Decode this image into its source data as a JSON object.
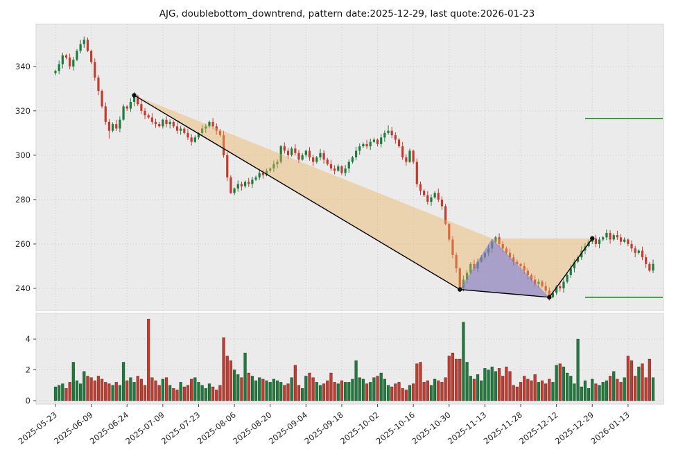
{
  "chart_data": {
    "type": "candlestick+volume",
    "title": "AJG, doublebottom_downtrend, pattern date:2025-12-29, last quote:2026-01-23",
    "symbol": "AJG",
    "pattern": "doublebottom_downtrend",
    "pattern_date": "2025-12-29",
    "last_quote_date": "2026-01-23",
    "price_axis": {
      "ticks": [
        240,
        260,
        280,
        300,
        320,
        340
      ],
      "ylim": [
        230,
        359
      ]
    },
    "volume_axis": {
      "ticks": [
        0,
        2,
        4
      ],
      "ylim": [
        0,
        5.67
      ]
    },
    "x_ticks": [
      {
        "index": 0,
        "label": "2025-05-23"
      },
      {
        "index": 10,
        "label": "2025-06-09"
      },
      {
        "index": 20,
        "label": "2025-06-24"
      },
      {
        "index": 30,
        "label": "2025-07-09"
      },
      {
        "index": 40,
        "label": "2025-07-23"
      },
      {
        "index": 50,
        "label": "2025-08-06"
      },
      {
        "index": 60,
        "label": "2025-08-20"
      },
      {
        "index": 70,
        "label": "2025-09-04"
      },
      {
        "index": 80,
        "label": "2025-09-18"
      },
      {
        "index": 90,
        "label": "2025-10-02"
      },
      {
        "index": 100,
        "label": "2025-10-16"
      },
      {
        "index": 110,
        "label": "2025-10-30"
      },
      {
        "index": 120,
        "label": "2025-11-13"
      },
      {
        "index": 130,
        "label": "2025-11-28"
      },
      {
        "index": 140,
        "label": "2025-12-12"
      },
      {
        "index": 150,
        "label": "2025-12-29"
      },
      {
        "index": 160,
        "label": "2026-01-13"
      }
    ],
    "first_open": 337,
    "closes": [
      338,
      341,
      345,
      344,
      340,
      343,
      347,
      350,
      352,
      347,
      342,
      335,
      329,
      322,
      315,
      311,
      314,
      312,
      316,
      322,
      321,
      324,
      326.5,
      323,
      320,
      318,
      317,
      315,
      314,
      313,
      316,
      314,
      315,
      313,
      311,
      312,
      310,
      308,
      306,
      308,
      310,
      312,
      313,
      315,
      313,
      311,
      309,
      300,
      290,
      283,
      285,
      287,
      286,
      288,
      287,
      289,
      290,
      292,
      291,
      293,
      294,
      296,
      297,
      304,
      302,
      300,
      303,
      301,
      298,
      300,
      302,
      299,
      297,
      299,
      301,
      298,
      296,
      294,
      293,
      295,
      292,
      294,
      297,
      299,
      302,
      304,
      305,
      304,
      306,
      307,
      305,
      308,
      310,
      311,
      309,
      307,
      304,
      299,
      297,
      302,
      297,
      287,
      284,
      282,
      279,
      281,
      283,
      280,
      277,
      269,
      262,
      255,
      249,
      240,
      244,
      247,
      251,
      249,
      252,
      254,
      256,
      258,
      261,
      263,
      260,
      258,
      256,
      254,
      252,
      251,
      250,
      248,
      246,
      244,
      242,
      243,
      241,
      239,
      236,
      238,
      241,
      240,
      243,
      246,
      249,
      252,
      254,
      257,
      259,
      261,
      262.5,
      260,
      262,
      263,
      265,
      262,
      264,
      263,
      261,
      262,
      260,
      258,
      256,
      257,
      254,
      251,
      248,
      251
    ],
    "volumes": [
      0.9,
      1.0,
      1.1,
      0.8,
      1.2,
      2.5,
      1.3,
      1.1,
      1.9,
      1.6,
      1.5,
      1.3,
      1.6,
      1.4,
      1.2,
      1.1,
      1.0,
      1.2,
      1.0,
      2.5,
      1.3,
      1.5,
      1.2,
      1.6,
      1.4,
      1.0,
      5.3,
      1.5,
      1.3,
      1.0,
      1.4,
      1.5,
      1.0,
      0.8,
      0.7,
      1.2,
      0.9,
      1.0,
      1.4,
      1.5,
      1.2,
      1.0,
      0.8,
      1.1,
      0.9,
      0.7,
      1.0,
      4.1,
      2.9,
      2.6,
      2.0,
      1.7,
      1.5,
      3.1,
      1.8,
      1.6,
      1.3,
      1.5,
      1.4,
      1.3,
      1.2,
      1.4,
      1.3,
      1.2,
      1.0,
      1.1,
      1.5,
      2.3,
      1.0,
      0.8,
      1.6,
      1.8,
      1.5,
      1.2,
      1.0,
      1.1,
      1.3,
      1.8,
      1.2,
      1.1,
      1.3,
      1.2,
      1.2,
      1.4,
      2.6,
      1.5,
      1.4,
      1.1,
      1.2,
      1.5,
      1.6,
      1.8,
      1.4,
      1.0,
      0.9,
      1.1,
      1.2,
      0.8,
      0.7,
      1.0,
      1.1,
      2.4,
      2.5,
      1.2,
      1.3,
      1.0,
      1.4,
      1.3,
      1.2,
      1.5,
      2.9,
      3.1,
      2.7,
      2.7,
      5.1,
      2.5,
      1.6,
      1.4,
      1.7,
      1.3,
      2.1,
      2.0,
      2.2,
      1.9,
      2.1,
      1.6,
      2.2,
      1.9,
      1.0,
      0.9,
      1.2,
      1.6,
      1.4,
      1.3,
      1.7,
      1.2,
      1.3,
      1.1,
      1.4,
      1.2,
      2.3,
      2.4,
      2.2,
      1.8,
      1.6,
      1.1,
      4.0,
      0.9,
      1.3,
      0.8,
      1.4,
      1.1,
      1.0,
      1.2,
      1.3,
      1.6,
      1.9,
      1.4,
      1.2,
      1.5,
      2.9,
      2.6,
      1.6,
      2.2,
      2.4,
      1.5,
      2.7,
      1.5
    ],
    "wick_overrides": {
      "8": {
        "high": 353.5
      },
      "15": {
        "low": 307.5
      },
      "22": {
        "high": 328.5
      },
      "93": {
        "high": 313.5
      },
      "113": {
        "low": 238.5
      },
      "138": {
        "low": 234.5
      },
      "154": {
        "high": 266.5
      }
    },
    "pattern_points": [
      {
        "index": 22,
        "price": 327
      },
      {
        "index": 113,
        "price": 239.5
      },
      {
        "index": 138,
        "price": 236
      },
      {
        "index": 150,
        "price": 262.5
      }
    ],
    "channel_polygon": [
      {
        "index": 22,
        "price": 327
      },
      {
        "index": 113,
        "price": 239.5
      },
      {
        "index": 138,
        "price": 236
      },
      {
        "index": 150,
        "price": 262.5
      },
      {
        "index": 122,
        "price": 262.5
      }
    ],
    "bottom_triangle": [
      {
        "index": 113,
        "price": 239.5
      },
      {
        "index": 122,
        "price": 262.5
      },
      {
        "index": 138,
        "price": 236
      }
    ],
    "levels": [
      {
        "name": "resistance-line",
        "price": 316.5,
        "from_index": 148
      },
      {
        "name": "support-line",
        "price": 236,
        "from_index": 148
      }
    ],
    "colors": {
      "up": "#1e7b3c",
      "down": "#c23b2e",
      "panel_bg": "#ebebeb",
      "panel_edge": "#d4d4d4",
      "grid": "#c9c9c9",
      "channel_fill": "#eeb25c",
      "channel_opacity": 0.42,
      "triangle_fill": "#646ee1",
      "triangle_opacity": 0.5,
      "pattern_line": "#000000",
      "level_line": "#178a17",
      "tick_text": "#262626"
    }
  }
}
